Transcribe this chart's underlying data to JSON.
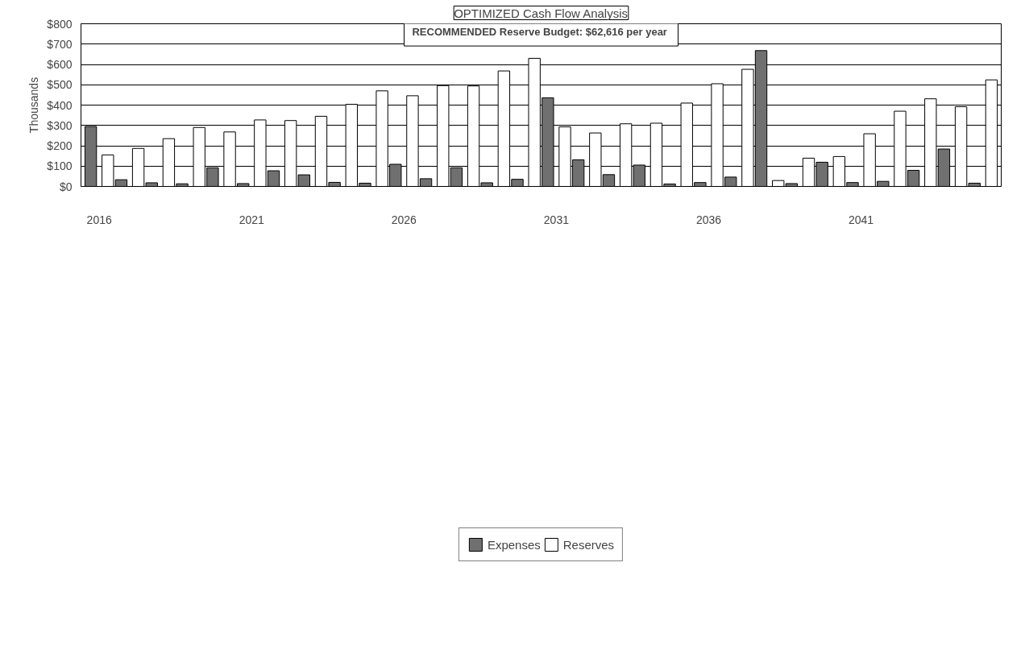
{
  "chart_data": {
    "type": "bar",
    "title": "OPTIMIZED Cash Flow Analysis",
    "ylabel": "Thousands",
    "annotations": [
      "RECOMMENDED Reserve Budget:  $62,616 per year"
    ],
    "categories": [
      "2016",
      null,
      null,
      null,
      null,
      "2021",
      null,
      null,
      null,
      null,
      "2026",
      null,
      null,
      null,
      null,
      "2031",
      null,
      null,
      null,
      null,
      "2036",
      null,
      null,
      null,
      null,
      "2041",
      null,
      null,
      null,
      null
    ],
    "series": [
      {
        "name": "Expenses",
        "color": "#707070",
        "values": [
          295,
          33,
          18,
          13,
          92,
          14,
          77,
          57,
          20,
          16,
          109,
          38,
          92,
          18,
          35,
          436,
          131,
          58,
          105,
          12,
          19,
          46,
          668,
          14,
          119,
          19,
          25,
          79,
          184,
          16
        ]
      },
      {
        "name": "Reserves",
        "color": "#ffffff",
        "values": [
          155,
          187,
          235,
          290,
          268,
          327,
          324,
          345,
          404,
          470,
          446,
          496,
          494,
          568,
          630,
          293,
          263,
          308,
          311,
          410,
          505,
          576,
          29,
          139,
          147,
          259,
          370,
          431,
          392,
          524
        ]
      }
    ],
    "ylim": [
      0,
      800
    ],
    "yticks": [
      {
        "value": 0,
        "label": "$0"
      },
      {
        "value": 100,
        "label": "$100"
      },
      {
        "value": 200,
        "label": "$200"
      },
      {
        "value": 300,
        "label": "$300"
      },
      {
        "value": 400,
        "label": "$400"
      },
      {
        "value": 500,
        "label": "$500"
      },
      {
        "value": 600,
        "label": "$600"
      },
      {
        "value": 700,
        "label": "$700"
      },
      {
        "value": 800,
        "label": "$800"
      }
    ],
    "grid": "y",
    "legend": "bottom"
  }
}
